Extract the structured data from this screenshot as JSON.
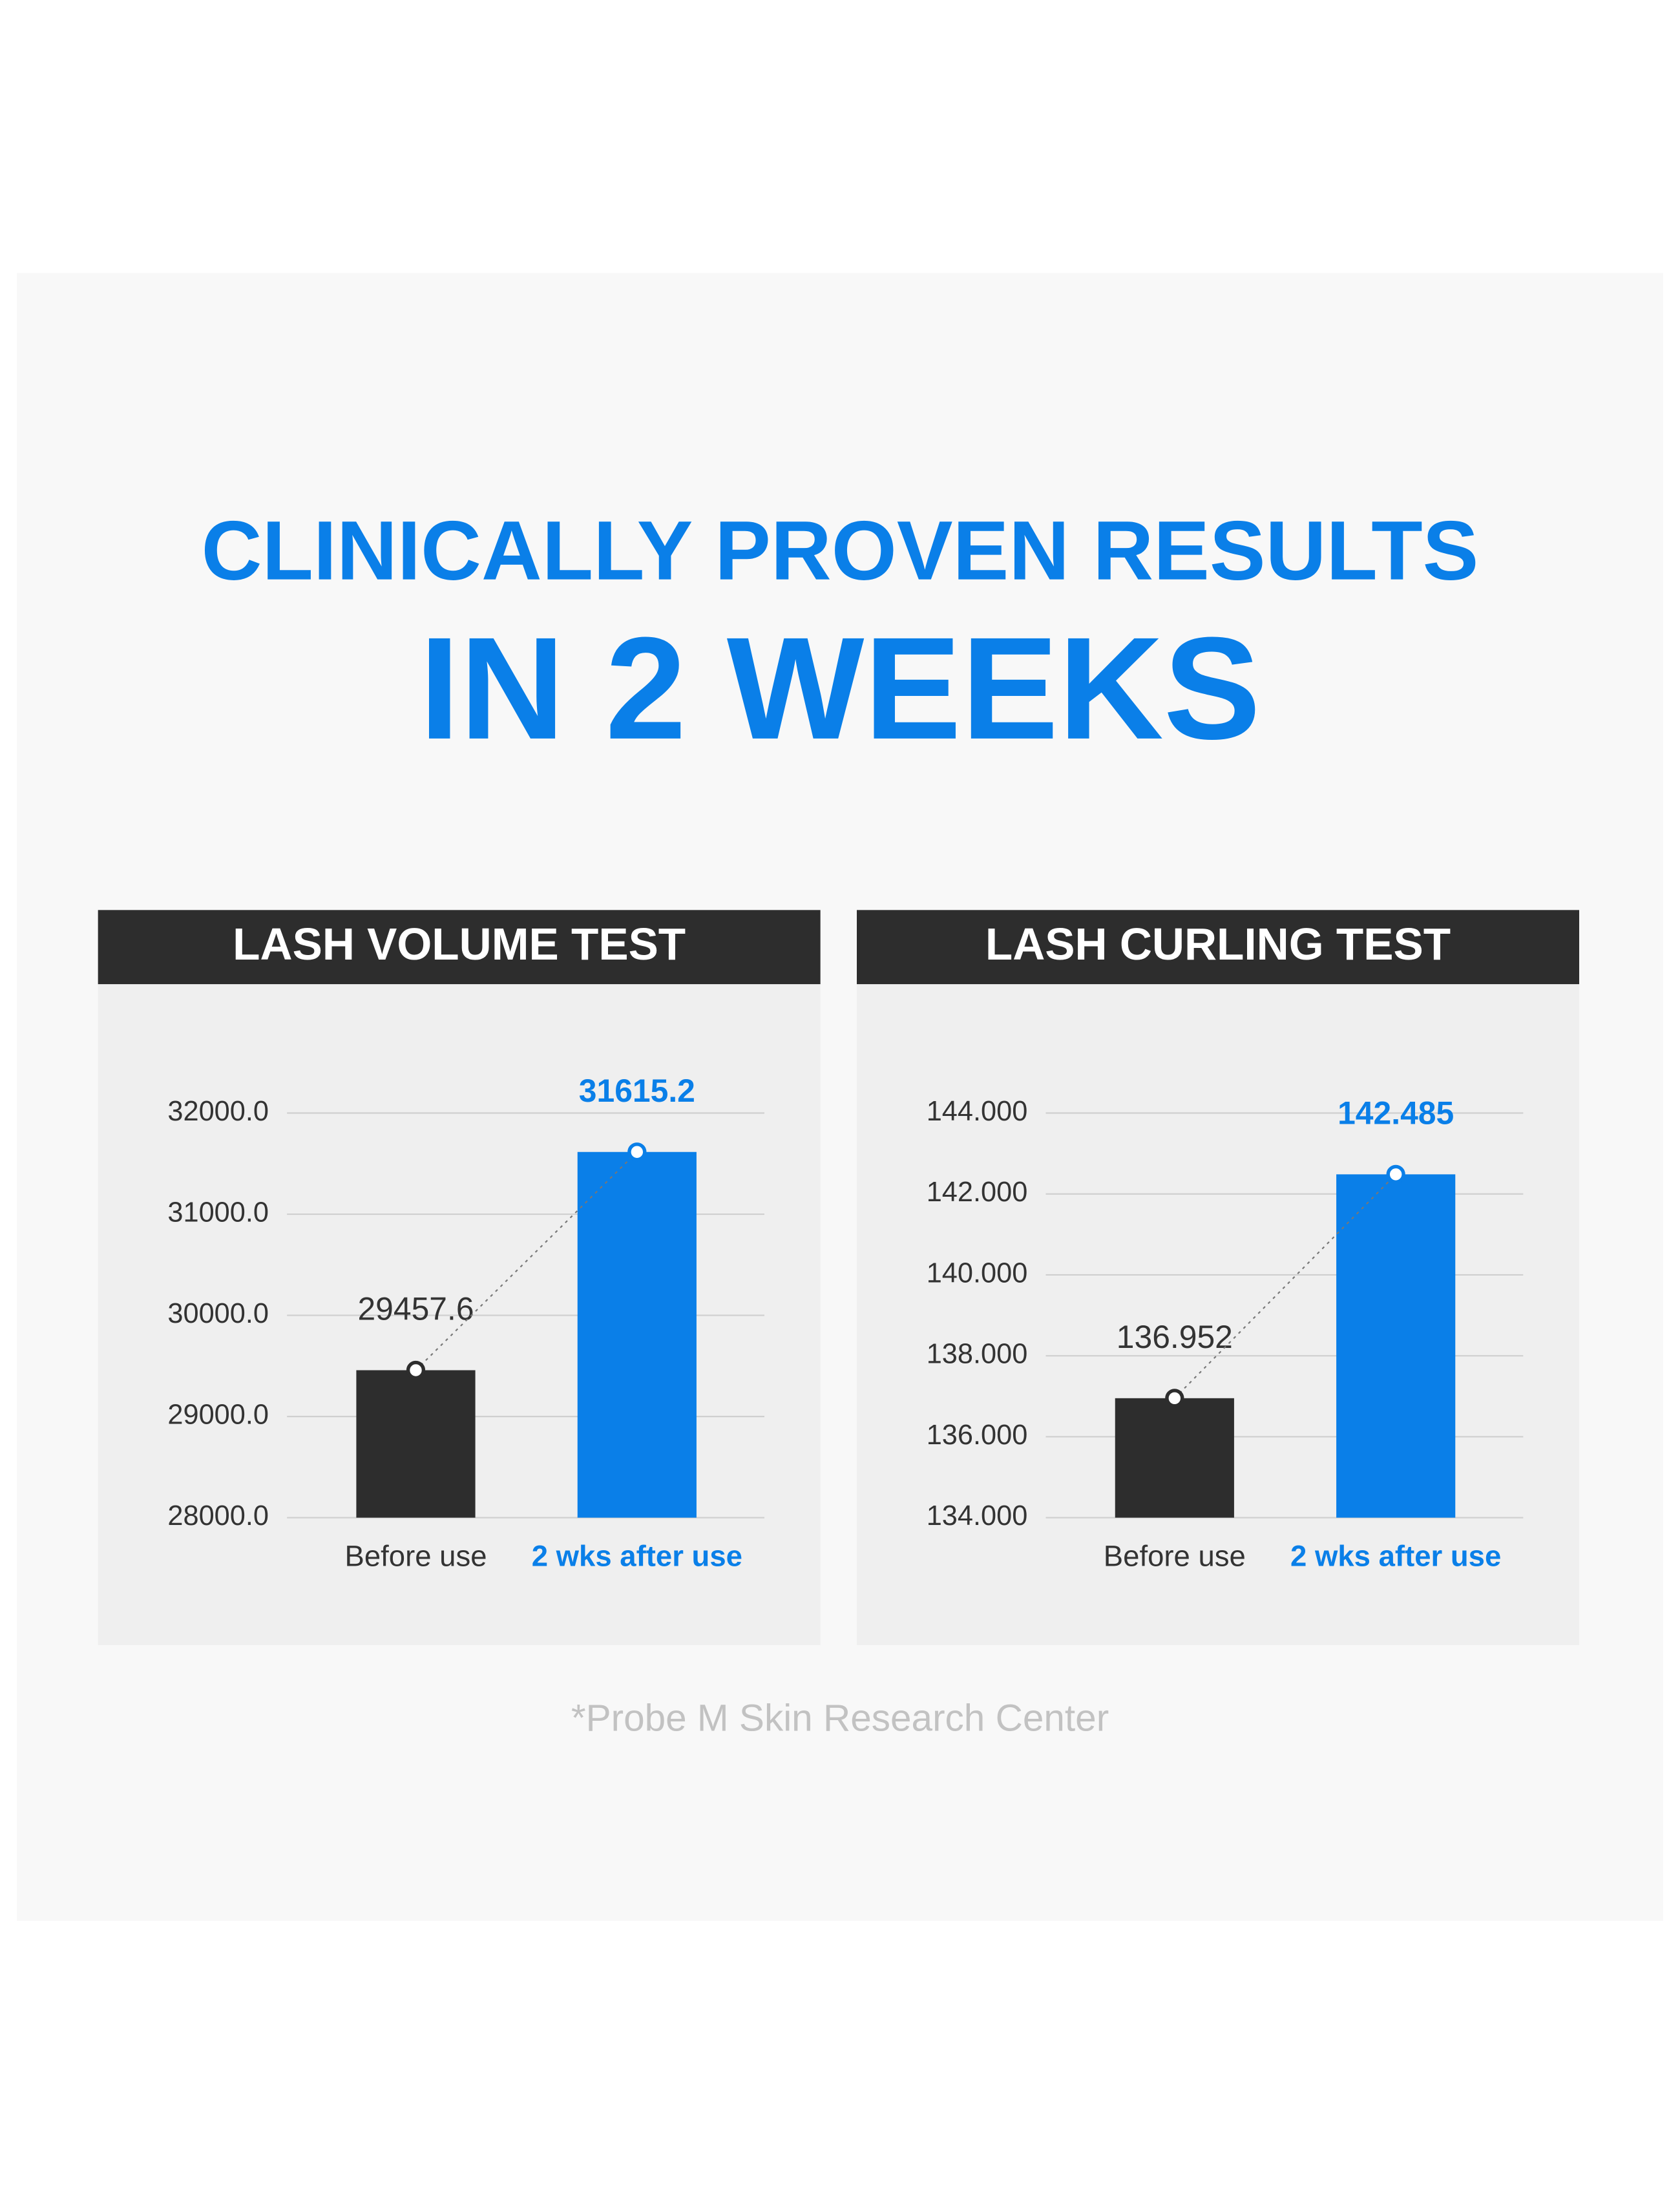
{
  "header": {
    "title_line1": "CLINICALLY PROVEN RESULTS",
    "title_line2": "IN 2 WEEKS"
  },
  "chart_data": [
    {
      "type": "bar",
      "title": "LASH VOLUME TEST",
      "categories": [
        "Before use",
        "2 wks after use"
      ],
      "values": [
        29457.6,
        31615.2
      ],
      "colors": [
        "#2d2d2d",
        "#0a7fe8"
      ],
      "ylim": [
        28000,
        32000
      ],
      "yticks": [
        {
          "value": 28000,
          "label": "28000.0"
        },
        {
          "value": 29000,
          "label": "29000.0"
        },
        {
          "value": 30000,
          "label": "30000.0"
        },
        {
          "value": 31000,
          "label": "31000.0"
        },
        {
          "value": 32000,
          "label": "32000.0"
        }
      ],
      "grid": true
    },
    {
      "type": "bar",
      "title": "LASH CURLING TEST",
      "categories": [
        "Before use",
        "2 wks after use"
      ],
      "values": [
        136.952,
        142.485
      ],
      "colors": [
        "#2d2d2d",
        "#0a7fe8"
      ],
      "ylim": [
        134,
        144
      ],
      "yticks": [
        {
          "value": 134,
          "label": "134.000"
        },
        {
          "value": 136,
          "label": "136.000"
        },
        {
          "value": 138,
          "label": "138.000"
        },
        {
          "value": 140,
          "label": "140.000"
        },
        {
          "value": 142,
          "label": "142.000"
        },
        {
          "value": 144,
          "label": "144.000"
        }
      ],
      "grid": true
    }
  ],
  "footnote": "*Probe M Skin Research Center"
}
